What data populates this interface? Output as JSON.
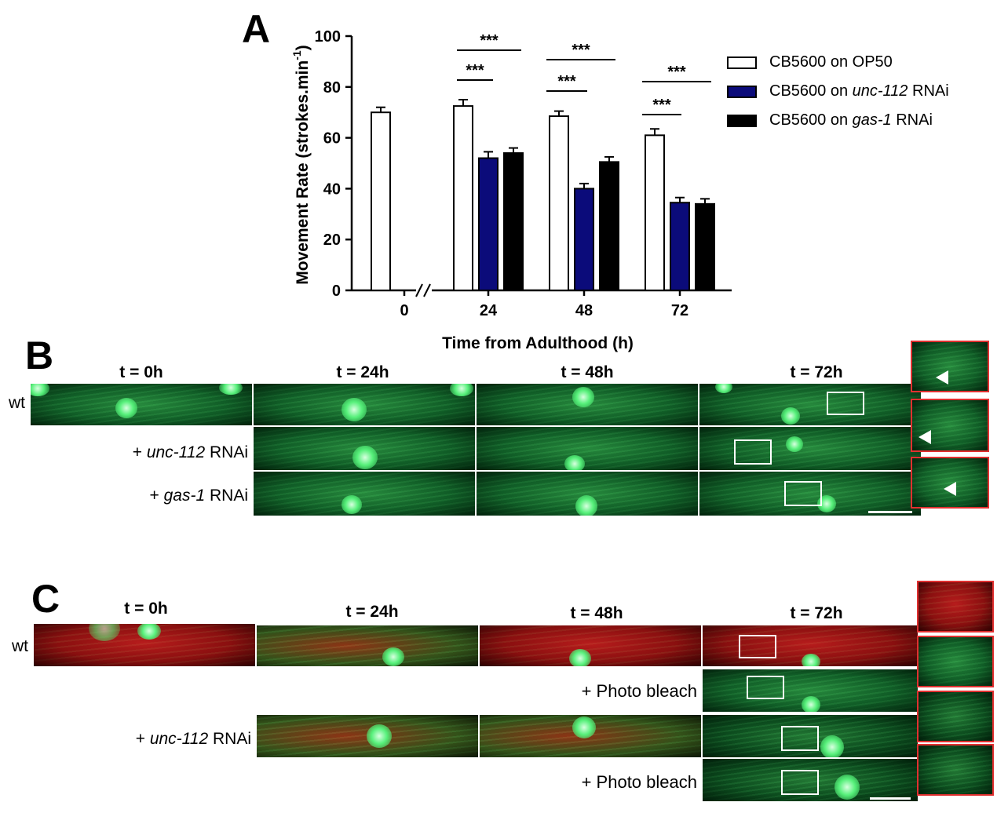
{
  "panel_a": {
    "letter": "A",
    "legend": [
      {
        "prefix": "CB5600 on ",
        "em": "",
        "suffix": "OP50",
        "color": "#ffffff"
      },
      {
        "prefix": "CB5600 on ",
        "em": "unc-112",
        "suffix": " RNAi",
        "color": "#0b0b7a"
      },
      {
        "prefix": "CB5600 on ",
        "em": "gas-1",
        "suffix": " RNAi",
        "color": "#000000"
      }
    ],
    "significance": "***"
  },
  "chart_data": {
    "type": "bar",
    "xlabel": "Time from Adulthood (h)",
    "ylabel": "Movement Rate (strokes.min",
    "ylabel_sup": "-1",
    "ylabel_close": ")",
    "ylim": [
      0,
      100
    ],
    "yticks": [
      "0",
      "20",
      "40",
      "60",
      "80",
      "100"
    ],
    "categories": [
      "0",
      "24",
      "48",
      "72"
    ],
    "series": [
      {
        "name": "CB5600 on OP50",
        "values": [
          70,
          72.5,
          68.5,
          61
        ],
        "errors": [
          2,
          2.5,
          2,
          2.5
        ]
      },
      {
        "name": "CB5600 on unc-112 RNAi",
        "values": [
          null,
          52,
          40,
          34.5
        ],
        "errors": [
          null,
          2.5,
          2,
          2
        ]
      },
      {
        "name": "CB5600 on gas-1 RNAi",
        "values": [
          null,
          54,
          50.5,
          34
        ],
        "errors": [
          null,
          2,
          2,
          2
        ]
      }
    ],
    "axis_break": true,
    "legend_position": "top-right"
  },
  "panel_b": {
    "letter": "B",
    "col_titles": [
      "t = 0h",
      "t = 24h",
      "t = 48h",
      "t = 72h"
    ],
    "rows": [
      {
        "label_plain": "wt",
        "label_em": "",
        "label_suffix": ""
      },
      {
        "label_plain": "+ ",
        "label_em": "unc-112",
        "label_suffix": " RNAi"
      },
      {
        "label_plain": "+ ",
        "label_em": "gas-1",
        "label_suffix": " RNAi"
      }
    ]
  },
  "panel_c": {
    "letter": "C",
    "col_titles": [
      "t = 0h",
      "t = 24h",
      "t = 48h",
      "t = 72h"
    ],
    "row_wt": "wt",
    "row_unc_prefix": "+ ",
    "row_unc_em": "unc-112",
    "row_unc_suffix": " RNAi",
    "photobleach": "+ Photo bleach"
  }
}
